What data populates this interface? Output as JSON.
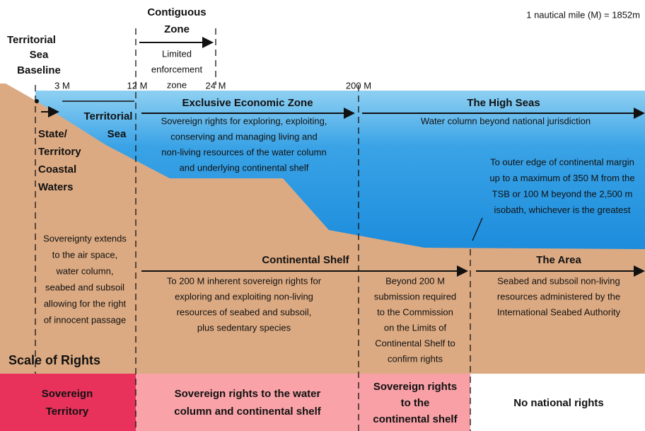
{
  "header": {
    "note": "1 nautical mile (M) = 1852m",
    "scale": "Scale of Rights"
  },
  "baseline": [
    "Territorial",
    "Sea",
    "Baseline"
  ],
  "distances": [
    "3 M",
    "12 M",
    "24 M",
    "200 M"
  ],
  "contiguous": {
    "title": [
      "Contiguous",
      "Zone"
    ],
    "desc": [
      "Limited",
      "enforcement",
      "zone"
    ]
  },
  "territorial_sea": [
    "Territorial",
    "Sea"
  ],
  "coastal": [
    "State/",
    "Territory",
    "Coastal",
    "Waters"
  ],
  "eez": {
    "title": "Exclusive Economic Zone",
    "desc": [
      "Sovereign rights for exploring, exploiting,",
      "conserving and managing living and",
      "non-living resources of the water column",
      "and underlying continental shelf"
    ]
  },
  "high_seas": {
    "title": "The High Seas",
    "desc": [
      "Water column beyond national jurisdiction"
    ]
  },
  "outer_edge": [
    "To outer edge of continental margin",
    "up to a maximum of 350 M from the",
    "TSB or 100 M beyond the 2,500 m",
    "isobath, whichever is the greatest"
  ],
  "sovereignty": [
    "Sovereignty extends",
    "to the air space,",
    "water column,",
    "seabed and subsoil",
    "allowing for the right",
    "of innocent passage"
  ],
  "continental_shelf": {
    "title": "Continental Shelf",
    "desc": [
      "To 200 M inherent sovereign rights for",
      "exploring and exploiting non-living",
      "resources of seabed and subsoil,",
      "plus sedentary species"
    ]
  },
  "beyond": [
    "Beyond 200 M",
    "submission required",
    "to the Commission",
    "on the Limits of",
    "Continental Shelf to",
    "confirm rights"
  ],
  "area": {
    "title": "The Area",
    "desc": [
      "Seabed and subsoil non-living",
      "resources administered by the",
      "International Seabed Authority"
    ]
  },
  "rights": [
    [
      "Sovereign",
      "Territory"
    ],
    [
      "Sovereign rights to the water",
      "column and continental shelf"
    ],
    [
      "Sovereign rights",
      "to the",
      "continental shelf"
    ],
    [
      "No national rights"
    ]
  ]
}
